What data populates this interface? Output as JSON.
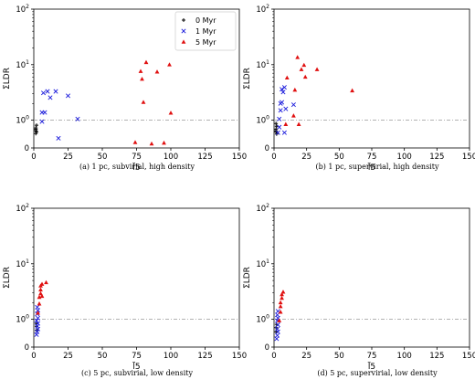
{
  "chart_data": [
    {
      "type": "scatter",
      "caption": "(a) 1 pc, subvirial, high density",
      "xlabel": "l̃5",
      "ylabel": "ΣLDR",
      "xlim": [
        0,
        150
      ],
      "ylim": [
        0,
        100
      ],
      "yscale": "symlog",
      "xticks": [
        "0",
        "25",
        "50",
        "75",
        "100",
        "125",
        "150"
      ],
      "yticks": [
        "0",
        "10^0",
        "10^1",
        "10^2"
      ],
      "reference_line": 1,
      "legend": {
        "placement": "top-right",
        "entries": [
          "0 Myr",
          "1 Myr",
          "5 Myr"
        ]
      },
      "series": [
        {
          "name": "0 Myr",
          "marker": "plus",
          "color": "#000000",
          "points": [
            [
              1.5,
              0.62
            ],
            [
              1.5,
              0.52
            ],
            [
              1.5,
              0.72
            ],
            [
              2,
              0.82
            ],
            [
              1.5,
              0.67
            ],
            [
              2,
              0.58
            ]
          ]
        },
        {
          "name": "1 Myr",
          "marker": "x",
          "color": "#1a1adb",
          "points": [
            [
              6,
              1.38
            ],
            [
              7,
              3.1
            ],
            [
              8,
              1.38
            ],
            [
              6,
              0.95
            ],
            [
              10,
              3.3
            ],
            [
              12,
              2.55
            ],
            [
              16,
              3.3
            ],
            [
              18,
              0.35
            ],
            [
              25,
              2.75
            ],
            [
              32,
              1.05
            ]
          ]
        },
        {
          "name": "5 Myr",
          "marker": "triangle",
          "color": "#e01010",
          "points": [
            [
              74,
              0.2
            ],
            [
              78,
              7.6
            ],
            [
              79,
              5.5
            ],
            [
              80,
              2.1
            ],
            [
              82,
              11
            ],
            [
              86,
              0.15
            ],
            [
              90,
              7.4
            ],
            [
              95,
              0.18
            ],
            [
              99,
              10
            ],
            [
              100,
              1.35
            ]
          ]
        }
      ]
    },
    {
      "type": "scatter",
      "caption": "(b) 1 pc, supervirial, high density",
      "xlabel": "l̃5",
      "ylabel": "ΣLDR",
      "xlim": [
        0,
        150
      ],
      "ylim": [
        0,
        100
      ],
      "yscale": "symlog",
      "xticks": [
        "0",
        "25",
        "50",
        "75",
        "100",
        "125",
        "150"
      ],
      "yticks": [
        "0",
        "10^0",
        "10^1",
        "10^2"
      ],
      "reference_line": 1,
      "series": [
        {
          "name": "0 Myr",
          "marker": "plus",
          "color": "#000000",
          "points": [
            [
              1.5,
              0.58
            ],
            [
              1.5,
              0.68
            ],
            [
              2,
              0.78
            ],
            [
              1.5,
              0.88
            ],
            [
              2,
              0.5
            ],
            [
              1.5,
              0.62
            ]
          ]
        },
        {
          "name": "1 Myr",
          "marker": "x",
          "color": "#1a1adb",
          "points": [
            [
              3,
              0.55
            ],
            [
              4,
              0.75
            ],
            [
              4,
              1.05
            ],
            [
              5,
              1.5
            ],
            [
              5,
              2.0
            ],
            [
              6,
              3.6
            ],
            [
              6,
              2.1
            ],
            [
              7,
              3.2
            ],
            [
              8,
              3.9
            ],
            [
              8,
              0.55
            ],
            [
              9,
              1.6
            ],
            [
              15,
              1.9
            ]
          ]
        },
        {
          "name": "5 Myr",
          "marker": "triangle",
          "color": "#e01010",
          "points": [
            [
              9,
              0.85
            ],
            [
              10,
              5.8
            ],
            [
              15,
              1.2
            ],
            [
              16,
              3.5
            ],
            [
              18,
              13.5
            ],
            [
              19,
              0.85
            ],
            [
              21,
              8.2
            ],
            [
              23,
              9.8
            ],
            [
              24,
              6.0
            ],
            [
              33,
              8.2
            ],
            [
              60,
              3.4
            ]
          ]
        }
      ]
    },
    {
      "type": "scatter",
      "caption": "(c) 5 pc, subvirial, low density",
      "xlabel": "l̃5",
      "ylabel": "ΣLDR",
      "xlim": [
        0,
        150
      ],
      "ylim": [
        0,
        100
      ],
      "yscale": "symlog",
      "xticks": [
        "0",
        "25",
        "50",
        "75",
        "100",
        "125",
        "150"
      ],
      "yticks": [
        "0",
        "10^0",
        "10^1",
        "10^2"
      ],
      "reference_line": 1,
      "series": [
        {
          "name": "0 Myr",
          "marker": "plus",
          "color": "#000000",
          "points": [
            [
              2,
              0.6
            ],
            [
              2,
              0.75
            ],
            [
              2,
              0.85
            ]
          ]
        },
        {
          "name": "1 Myr",
          "marker": "x",
          "color": "#1a1adb",
          "points": [
            [
              2,
              0.45
            ],
            [
              2.5,
              0.55
            ],
            [
              3,
              0.65
            ],
            [
              2.5,
              0.75
            ],
            [
              3,
              0.85
            ],
            [
              2,
              0.95
            ],
            [
              3,
              1.05
            ],
            [
              2.5,
              1.25
            ],
            [
              3,
              1.45
            ],
            [
              2.5,
              1.65
            ]
          ]
        },
        {
          "name": "5 Myr",
          "marker": "triangle",
          "color": "#e01010",
          "points": [
            [
              3,
              1.3
            ],
            [
              4,
              1.9
            ],
            [
              4,
              2.5
            ],
            [
              5,
              2.9
            ],
            [
              5,
              3.4
            ],
            [
              5,
              4.0
            ],
            [
              6,
              4.3
            ],
            [
              6,
              2.6
            ],
            [
              9,
              4.6
            ]
          ]
        }
      ]
    },
    {
      "type": "scatter",
      "caption": "(d) 5 pc, supervirial, low density",
      "xlabel": "l̃5",
      "ylabel": "ΣLDR",
      "xlim": [
        0,
        150
      ],
      "ylim": [
        0,
        100
      ],
      "yscale": "symlog",
      "xticks": [
        "0",
        "25",
        "50",
        "75",
        "100",
        "125",
        "150"
      ],
      "yticks": [
        "0",
        "10^0",
        "10^1",
        "10^2"
      ],
      "reference_line": 1,
      "series": [
        {
          "name": "0 Myr",
          "marker": "plus",
          "color": "#000000",
          "points": [
            [
              1.5,
              0.55
            ],
            [
              1.5,
              0.7
            ],
            [
              2,
              0.82
            ]
          ]
        },
        {
          "name": "1 Myr",
          "marker": "x",
          "color": "#1a1adb",
          "points": [
            [
              2,
              0.3
            ],
            [
              2.5,
              0.42
            ],
            [
              3,
              0.55
            ],
            [
              2.5,
              0.65
            ],
            [
              3,
              0.8
            ],
            [
              2.5,
              0.95
            ],
            [
              3,
              1.05
            ],
            [
              2.5,
              1.2
            ],
            [
              3,
              1.4
            ]
          ]
        },
        {
          "name": "5 Myr",
          "marker": "triangle",
          "color": "#e01010",
          "points": [
            [
              4,
              0.95
            ],
            [
              5,
              1.35
            ],
            [
              5,
              1.7
            ],
            [
              5,
              2.0
            ],
            [
              6,
              2.4
            ],
            [
              6,
              2.8
            ],
            [
              7,
              3.1
            ]
          ]
        }
      ]
    }
  ]
}
